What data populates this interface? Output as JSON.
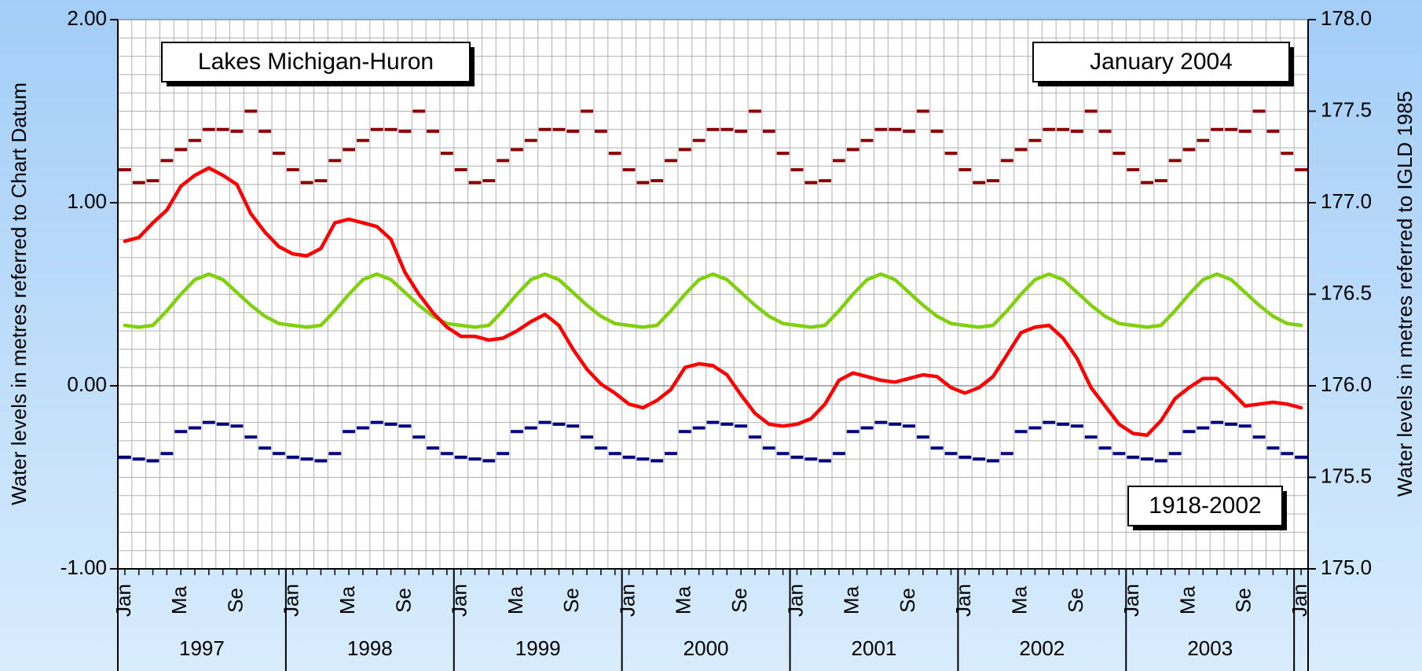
{
  "chart_data": {
    "type": "line",
    "annotations": [
      "Lakes Michigan-Huron",
      "January 2004",
      "1918-2002"
    ],
    "ylabel": "Water levels in metres referred to Chart Datum",
    "y2label": "Water levels in metres referred to IGLD 1985",
    "categories": [
      "Jan",
      null,
      null,
      null,
      "Ma",
      null,
      null,
      null,
      "Se",
      null,
      null,
      null,
      "Jan",
      null,
      null,
      null,
      "Ma",
      null,
      null,
      null,
      "Se",
      null,
      null,
      null,
      "Jan",
      null,
      null,
      null,
      "Ma",
      null,
      null,
      null,
      "Se",
      null,
      null,
      null,
      "Jan",
      null,
      null,
      null,
      "Ma",
      null,
      null,
      null,
      "Se",
      null,
      null,
      null,
      "Jan",
      null,
      null,
      null,
      "Ma",
      null,
      null,
      null,
      "Se",
      null,
      null,
      null,
      "Jan",
      null,
      null,
      null,
      "Ma",
      null,
      null,
      null,
      "Se",
      null,
      null,
      null,
      "Jan",
      null,
      null,
      null,
      "Ma",
      null,
      null,
      null,
      "Se",
      null,
      null,
      null,
      "Jan"
    ],
    "years": [
      "1997",
      "1998",
      "1999",
      "2000",
      "2001",
      "2002",
      "2003"
    ],
    "ylim": [
      -1,
      2
    ],
    "yticks": [
      {
        "value": -1,
        "label": "-1.00"
      },
      {
        "value": 0,
        "label": "0.00"
      },
      {
        "value": 1,
        "label": "1.00"
      },
      {
        "value": 2,
        "label": "2.00"
      }
    ],
    "y2lim": [
      175,
      178
    ],
    "y2ticks": [
      {
        "value": 175,
        "label": "175.0"
      },
      {
        "value": 175.5,
        "label": "175.5"
      },
      {
        "value": 176,
        "label": "176.0"
      },
      {
        "value": 176.5,
        "label": "176.5"
      },
      {
        "value": 177,
        "label": "177.0"
      },
      {
        "value": 177.5,
        "label": "177.5"
      },
      {
        "value": 178,
        "label": "178.0"
      }
    ],
    "grid": true,
    "series": [
      {
        "style": "dash",
        "color": "#8b0000",
        "values": [
          1.18,
          1.11,
          1.12,
          1.23,
          1.29,
          1.34,
          1.4,
          1.4,
          1.39,
          1.5,
          1.39,
          1.27,
          1.18,
          1.11,
          1.12,
          1.23,
          1.29,
          1.34,
          1.4,
          1.4,
          1.39,
          1.5,
          1.39,
          1.27,
          1.18,
          1.11,
          1.12,
          1.23,
          1.29,
          1.34,
          1.4,
          1.4,
          1.39,
          1.5,
          1.39,
          1.27,
          1.18,
          1.11,
          1.12,
          1.23,
          1.29,
          1.34,
          1.4,
          1.4,
          1.39,
          1.5,
          1.39,
          1.27,
          1.18,
          1.11,
          1.12,
          1.23,
          1.29,
          1.34,
          1.4,
          1.4,
          1.39,
          1.5,
          1.39,
          1.27,
          1.18,
          1.11,
          1.12,
          1.23,
          1.29,
          1.34,
          1.4,
          1.4,
          1.39,
          1.5,
          1.39,
          1.27,
          1.18,
          1.11,
          1.12,
          1.23,
          1.29,
          1.34,
          1.4,
          1.4,
          1.39,
          1.5,
          1.39,
          1.27,
          1.18
        ]
      },
      {
        "style": "dash",
        "color": "#000080",
        "values": [
          -0.39,
          -0.4,
          -0.41,
          -0.37,
          -0.25,
          -0.23,
          -0.2,
          -0.21,
          -0.22,
          -0.28,
          -0.34,
          -0.37,
          -0.39,
          -0.4,
          -0.41,
          -0.37,
          -0.25,
          -0.23,
          -0.2,
          -0.21,
          -0.22,
          -0.28,
          -0.34,
          -0.37,
          -0.39,
          -0.4,
          -0.41,
          -0.37,
          -0.25,
          -0.23,
          -0.2,
          -0.21,
          -0.22,
          -0.28,
          -0.34,
          -0.37,
          -0.39,
          -0.4,
          -0.41,
          -0.37,
          -0.25,
          -0.23,
          -0.2,
          -0.21,
          -0.22,
          -0.28,
          -0.34,
          -0.37,
          -0.39,
          -0.4,
          -0.41,
          -0.37,
          -0.25,
          -0.23,
          -0.2,
          -0.21,
          -0.22,
          -0.28,
          -0.34,
          -0.37,
          -0.39,
          -0.4,
          -0.41,
          -0.37,
          -0.25,
          -0.23,
          -0.2,
          -0.21,
          -0.22,
          -0.28,
          -0.34,
          -0.37,
          -0.39,
          -0.4,
          -0.41,
          -0.37,
          -0.25,
          -0.23,
          -0.2,
          -0.21,
          -0.22,
          -0.28,
          -0.34,
          -0.37,
          -0.39
        ]
      },
      {
        "style": "line",
        "color": "#80d010",
        "values": [
          0.33,
          0.32,
          0.33,
          0.41,
          0.5,
          0.58,
          0.61,
          0.58,
          0.51,
          0.44,
          0.38,
          0.34,
          0.33,
          0.32,
          0.33,
          0.41,
          0.5,
          0.58,
          0.61,
          0.58,
          0.51,
          0.44,
          0.38,
          0.34,
          0.33,
          0.32,
          0.33,
          0.41,
          0.5,
          0.58,
          0.61,
          0.58,
          0.51,
          0.44,
          0.38,
          0.34,
          0.33,
          0.32,
          0.33,
          0.41,
          0.5,
          0.58,
          0.61,
          0.58,
          0.51,
          0.44,
          0.38,
          0.34,
          0.33,
          0.32,
          0.33,
          0.41,
          0.5,
          0.58,
          0.61,
          0.58,
          0.51,
          0.44,
          0.38,
          0.34,
          0.33,
          0.32,
          0.33,
          0.41,
          0.5,
          0.58,
          0.61,
          0.58,
          0.51,
          0.44,
          0.38,
          0.34,
          0.33,
          0.32,
          0.33,
          0.41,
          0.5,
          0.58,
          0.61,
          0.58,
          0.51,
          0.44,
          0.38,
          0.34,
          0.33
        ]
      },
      {
        "style": "line",
        "color": "#ff0000",
        "values": [
          0.79,
          0.81,
          0.89,
          0.96,
          1.09,
          1.15,
          1.19,
          1.15,
          1.1,
          0.94,
          0.84,
          0.76,
          0.72,
          0.71,
          0.75,
          0.89,
          0.91,
          0.89,
          0.87,
          0.8,
          0.62,
          0.5,
          0.4,
          0.32,
          0.27,
          0.27,
          0.25,
          0.26,
          0.3,
          0.35,
          0.39,
          0.33,
          0.2,
          0.09,
          0.01,
          -0.04,
          -0.1,
          -0.12,
          -0.08,
          -0.02,
          0.1,
          0.12,
          0.11,
          0.06,
          -0.05,
          -0.15,
          -0.21,
          -0.22,
          -0.21,
          -0.18,
          -0.1,
          0.03,
          0.07,
          0.05,
          0.03,
          0.02,
          0.04,
          0.06,
          0.05,
          -0.01,
          -0.04,
          -0.01,
          0.05,
          0.17,
          0.29,
          0.32,
          0.33,
          0.26,
          0.15,
          -0.01,
          -0.11,
          -0.21,
          -0.26,
          -0.27,
          -0.19,
          -0.07,
          -0.01,
          0.04,
          0.04,
          -0.03,
          -0.11,
          -0.1,
          -0.09,
          -0.1,
          -0.12
        ]
      }
    ]
  }
}
